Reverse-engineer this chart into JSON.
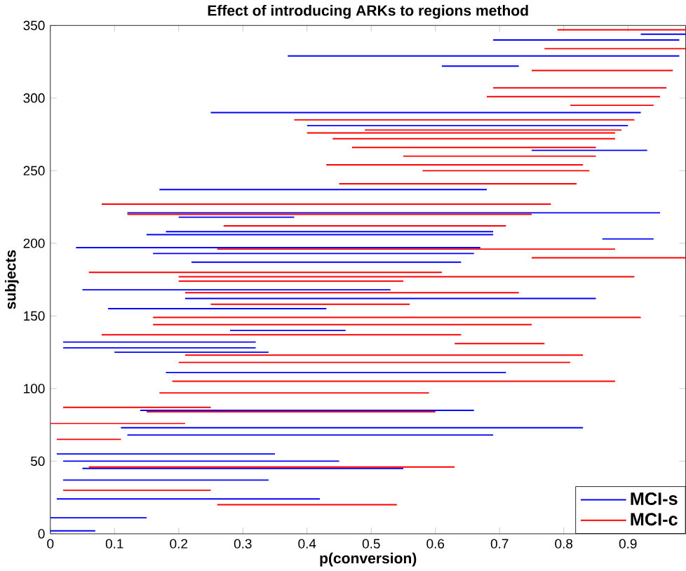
{
  "chart_data": {
    "type": "line",
    "title": "Effect of introducing ARKs to regions method",
    "xlabel": "p(conversion)",
    "ylabel": "subjects",
    "xlim": [
      0,
      0.99
    ],
    "ylim": [
      0,
      350
    ],
    "xticks": [
      0,
      0.1,
      0.2,
      0.3,
      0.4,
      0.5,
      0.6,
      0.7,
      0.8,
      0.9
    ],
    "yticks": [
      0,
      50,
      100,
      150,
      200,
      250,
      300,
      350
    ],
    "legend": "bottom right",
    "marker": "none",
    "line_style": "solid",
    "series": [
      {
        "name": "MCI-s",
        "color": "#0000ff",
        "x": [
          0,
          0.07
        ],
        "values": [
          2,
          2
        ]
      },
      {
        "name": "MCI-c",
        "color": "#ff0000",
        "x": [
          0.26,
          0.54
        ],
        "values": [
          20,
          20
        ]
      },
      {
        "color": "#0000ff",
        "x": [
          0,
          0.15
        ],
        "values": [
          11,
          11
        ]
      },
      {
        "color": "#0000ff",
        "x": [
          0.01,
          0.42
        ],
        "values": [
          24,
          24
        ]
      },
      {
        "color": "#0000ff",
        "x": [
          0.02,
          0.34
        ],
        "values": [
          37,
          37
        ]
      },
      {
        "color": "#0000ff",
        "x": [
          0.05,
          0.55
        ],
        "values": [
          45,
          45
        ]
      },
      {
        "color": "#0000ff",
        "x": [
          0.02,
          0.45
        ],
        "values": [
          50,
          50
        ]
      },
      {
        "color": "#0000ff",
        "x": [
          0.01,
          0.35
        ],
        "values": [
          55,
          55
        ]
      },
      {
        "color": "#0000ff",
        "x": [
          0.12,
          0.69
        ],
        "values": [
          68,
          68
        ]
      },
      {
        "color": "#0000ff",
        "x": [
          0.11,
          0.83
        ],
        "values": [
          73,
          73
        ]
      },
      {
        "color": "#0000ff",
        "x": [
          0.14,
          0.66
        ],
        "values": [
          85,
          85
        ]
      },
      {
        "color": "#0000ff",
        "x": [
          0.18,
          0.71
        ],
        "values": [
          111,
          111
        ]
      },
      {
        "color": "#0000ff",
        "x": [
          0.1,
          0.34
        ],
        "values": [
          125,
          125
        ]
      },
      {
        "color": "#0000ff",
        "x": [
          0.02,
          0.32
        ],
        "values": [
          128,
          128
        ]
      },
      {
        "color": "#0000ff",
        "x": [
          0.02,
          0.32
        ],
        "values": [
          132,
          132
        ]
      },
      {
        "color": "#0000ff",
        "x": [
          0.28,
          0.46
        ],
        "values": [
          140,
          140
        ]
      },
      {
        "color": "#0000ff",
        "x": [
          0.09,
          0.43
        ],
        "values": [
          155,
          155
        ]
      },
      {
        "color": "#0000ff",
        "x": [
          0.21,
          0.85
        ],
        "values": [
          162,
          162
        ]
      },
      {
        "color": "#0000ff",
        "x": [
          0.05,
          0.53
        ],
        "values": [
          168,
          168
        ]
      },
      {
        "color": "#0000ff",
        "x": [
          0.22,
          0.64
        ],
        "values": [
          187,
          187
        ]
      },
      {
        "color": "#0000ff",
        "x": [
          0.16,
          0.66
        ],
        "values": [
          193,
          193
        ]
      },
      {
        "color": "#0000ff",
        "x": [
          0.04,
          0.67
        ],
        "values": [
          197,
          197
        ]
      },
      {
        "color": "#0000ff",
        "x": [
          0.86,
          0.94
        ],
        "values": [
          203,
          203
        ]
      },
      {
        "color": "#0000ff",
        "x": [
          0.15,
          0.69
        ],
        "values": [
          206,
          206
        ]
      },
      {
        "color": "#0000ff",
        "x": [
          0.18,
          0.69
        ],
        "values": [
          208,
          208
        ]
      },
      {
        "color": "#0000ff",
        "x": [
          0.2,
          0.38
        ],
        "values": [
          218,
          218
        ]
      },
      {
        "color": "#0000ff",
        "x": [
          0.12,
          0.95
        ],
        "values": [
          221,
          221
        ]
      },
      {
        "color": "#0000ff",
        "x": [
          0.17,
          0.68
        ],
        "values": [
          237,
          237
        ]
      },
      {
        "color": "#0000ff",
        "x": [
          0.75,
          0.93
        ],
        "values": [
          264,
          264
        ]
      },
      {
        "color": "#0000ff",
        "x": [
          0.4,
          0.9
        ],
        "values": [
          281,
          281
        ]
      },
      {
        "color": "#0000ff",
        "x": [
          0.25,
          0.92
        ],
        "values": [
          290,
          290
        ]
      },
      {
        "color": "#0000ff",
        "x": [
          0.61,
          0.73
        ],
        "values": [
          322,
          322
        ]
      },
      {
        "color": "#0000ff",
        "x": [
          0.37,
          0.98
        ],
        "values": [
          329,
          329
        ]
      },
      {
        "color": "#0000ff",
        "x": [
          0.69,
          0.98
        ],
        "values": [
          340,
          340
        ]
      },
      {
        "color": "#0000ff",
        "x": [
          0.92,
          0.99
        ],
        "values": [
          344,
          344
        ]
      },
      {
        "color": "#ff0000",
        "x": [
          0.02,
          0.25
        ],
        "values": [
          30,
          30
        ]
      },
      {
        "color": "#ff0000",
        "x": [
          0.06,
          0.63
        ],
        "values": [
          46,
          46
        ]
      },
      {
        "color": "#ff0000",
        "x": [
          0.01,
          0.11
        ],
        "values": [
          65,
          65
        ]
      },
      {
        "color": "#ff0000",
        "x": [
          0,
          0.21
        ],
        "values": [
          76,
          76
        ]
      },
      {
        "color": "#ff0000",
        "x": [
          0.15,
          0.6
        ],
        "values": [
          84,
          84
        ]
      },
      {
        "color": "#ff0000",
        "x": [
          0.02,
          0.25
        ],
        "values": [
          87,
          87
        ]
      },
      {
        "color": "#ff0000",
        "x": [
          0.17,
          0.59
        ],
        "values": [
          97,
          97
        ]
      },
      {
        "color": "#ff0000",
        "x": [
          0.19,
          0.88
        ],
        "values": [
          105,
          105
        ]
      },
      {
        "color": "#ff0000",
        "x": [
          0.2,
          0.81
        ],
        "values": [
          118,
          118
        ]
      },
      {
        "color": "#ff0000",
        "x": [
          0.21,
          0.83
        ],
        "values": [
          123,
          123
        ]
      },
      {
        "color": "#ff0000",
        "x": [
          0.63,
          0.77
        ],
        "values": [
          131,
          131
        ]
      },
      {
        "color": "#ff0000",
        "x": [
          0.08,
          0.64
        ],
        "values": [
          137,
          137
        ]
      },
      {
        "color": "#ff0000",
        "x": [
          0.16,
          0.75
        ],
        "values": [
          144,
          144
        ]
      },
      {
        "color": "#ff0000",
        "x": [
          0.16,
          0.92
        ],
        "values": [
          149,
          149
        ]
      },
      {
        "color": "#ff0000",
        "x": [
          0.25,
          0.56
        ],
        "values": [
          158,
          158
        ]
      },
      {
        "color": "#ff0000",
        "x": [
          0.21,
          0.73
        ],
        "values": [
          166,
          166
        ]
      },
      {
        "color": "#ff0000",
        "x": [
          0.2,
          0.55
        ],
        "values": [
          174,
          174
        ]
      },
      {
        "color": "#ff0000",
        "x": [
          0.2,
          0.91
        ],
        "values": [
          177,
          177
        ]
      },
      {
        "color": "#ff0000",
        "x": [
          0.06,
          0.61
        ],
        "values": [
          180,
          180
        ]
      },
      {
        "color": "#ff0000",
        "x": [
          0.75,
          0.99
        ],
        "values": [
          190,
          190
        ]
      },
      {
        "color": "#ff0000",
        "x": [
          0.26,
          0.88
        ],
        "values": [
          196,
          196
        ]
      },
      {
        "color": "#ff0000",
        "x": [
          0.27,
          0.71
        ],
        "values": [
          212,
          212
        ]
      },
      {
        "color": "#ff0000",
        "x": [
          0.12,
          0.75
        ],
        "values": [
          220,
          220
        ]
      },
      {
        "color": "#ff0000",
        "x": [
          0.08,
          0.78
        ],
        "values": [
          227,
          227
        ]
      },
      {
        "color": "#ff0000",
        "x": [
          0.45,
          0.82
        ],
        "values": [
          241,
          241
        ]
      },
      {
        "color": "#ff0000",
        "x": [
          0.58,
          0.84
        ],
        "values": [
          250,
          250
        ]
      },
      {
        "color": "#ff0000",
        "x": [
          0.43,
          0.83
        ],
        "values": [
          254,
          254
        ]
      },
      {
        "color": "#ff0000",
        "x": [
          0.55,
          0.85
        ],
        "values": [
          260,
          260
        ]
      },
      {
        "color": "#ff0000",
        "x": [
          0.47,
          0.85
        ],
        "values": [
          266,
          266
        ]
      },
      {
        "color": "#ff0000",
        "x": [
          0.44,
          0.88
        ],
        "values": [
          272,
          272
        ]
      },
      {
        "color": "#ff0000",
        "x": [
          0.4,
          0.88
        ],
        "values": [
          276,
          276
        ]
      },
      {
        "color": "#ff0000",
        "x": [
          0.49,
          0.89
        ],
        "values": [
          278,
          278
        ]
      },
      {
        "color": "#ff0000",
        "x": [
          0.38,
          0.91
        ],
        "values": [
          285,
          285
        ]
      },
      {
        "color": "#ff0000",
        "x": [
          0.81,
          0.94
        ],
        "values": [
          295,
          295
        ]
      },
      {
        "color": "#ff0000",
        "x": [
          0.68,
          0.95
        ],
        "values": [
          301,
          301
        ]
      },
      {
        "color": "#ff0000",
        "x": [
          0.69,
          0.96
        ],
        "values": [
          307,
          307
        ]
      },
      {
        "color": "#ff0000",
        "x": [
          0.75,
          0.97
        ],
        "values": [
          319,
          319
        ]
      },
      {
        "color": "#ff0000",
        "x": [
          0.77,
          0.99
        ],
        "values": [
          334,
          334
        ]
      },
      {
        "color": "#ff0000",
        "x": [
          0.79,
          0.99
        ],
        "values": [
          347,
          347
        ]
      }
    ]
  }
}
